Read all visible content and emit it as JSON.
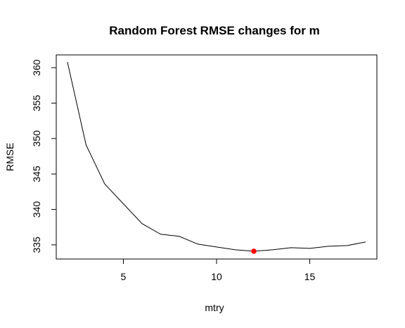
{
  "chart_data": {
    "type": "line",
    "title": "Random Forest RMSE changes for m",
    "xlabel": "mtry",
    "ylabel": "RMSE",
    "xlim": [
      1.4,
      18.6
    ],
    "ylim": [
      333.0,
      361.8
    ],
    "xticks": [
      5,
      10,
      15
    ],
    "yticks": [
      335,
      340,
      345,
      350,
      355,
      360
    ],
    "grid": false,
    "series": [
      {
        "x": [
          2,
          3,
          4,
          5,
          6,
          7,
          8,
          9,
          10,
          11,
          12,
          13,
          14,
          15,
          16,
          17,
          18
        ],
        "y": [
          360.8,
          349.1,
          343.6,
          340.8,
          338.0,
          336.5,
          336.2,
          335.1,
          334.7,
          334.3,
          334.1,
          334.3,
          334.6,
          334.5,
          334.8,
          334.9,
          335.4
        ],
        "color": "#000000"
      }
    ],
    "highlight": {
      "x": 12,
      "y": 334.1,
      "color": "#ff0000"
    }
  }
}
